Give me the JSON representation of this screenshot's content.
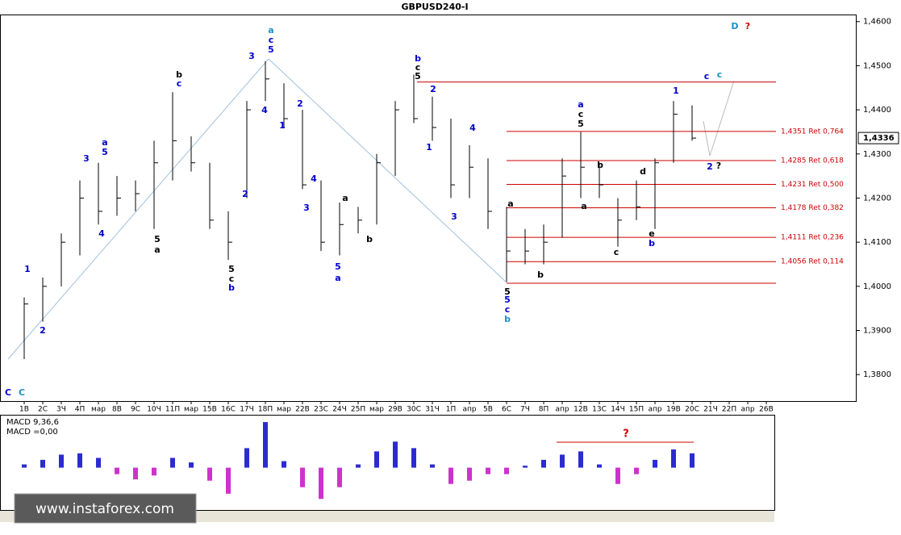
{
  "chart_data": {
    "type": "ohlc",
    "title": "GBPUSD240-I",
    "categories": [
      "1В",
      "2С",
      "3Ч",
      "4П",
      "мар",
      "8В",
      "9С",
      "10Ч",
      "11П",
      "мар",
      "15В",
      "16С",
      "17Ч",
      "18П",
      "мар",
      "22В",
      "23С",
      "24Ч",
      "25П",
      "мар",
      "29В",
      "30С",
      "31Ч",
      "1П",
      "апр",
      "5В",
      "6С",
      "7Ч",
      "8П",
      "апр",
      "12В",
      "13С",
      "14Ч",
      "15П",
      "апр",
      "19В",
      "20С",
      "21Ч",
      "22П",
      "апр",
      "26В"
    ],
    "high": [
      1.3975,
      1.402,
      1.412,
      1.424,
      1.428,
      1.425,
      1.424,
      1.433,
      1.444,
      1.434,
      1.428,
      1.417,
      1.442,
      1.451,
      1.446,
      1.44,
      1.424,
      1.419,
      1.418,
      1.43,
      1.442,
      1.448,
      1.443,
      1.438,
      1.432,
      1.429,
      1.418,
      1.413,
      1.414,
      1.429,
      1.435,
      1.428,
      1.42,
      1.424,
      1.429,
      1.442,
      1.441,
      null,
      null,
      null,
      null
    ],
    "low": [
      1.3835,
      1.392,
      1.4,
      1.407,
      1.414,
      1.416,
      1.417,
      1.413,
      1.424,
      1.426,
      1.413,
      1.406,
      1.42,
      1.442,
      1.436,
      1.422,
      1.408,
      1.407,
      1.412,
      1.414,
      1.425,
      1.437,
      1.433,
      1.42,
      1.42,
      1.413,
      1.401,
      1.405,
      1.405,
      1.411,
      1.42,
      1.42,
      1.409,
      1.415,
      1.413,
      1.428,
      1.433,
      null,
      null,
      null,
      null
    ],
    "close": [
      1.396,
      1.4,
      1.41,
      1.42,
      1.417,
      1.42,
      1.421,
      1.428,
      1.433,
      1.428,
      1.415,
      1.41,
      1.44,
      1.447,
      1.438,
      1.423,
      1.41,
      1.414,
      1.415,
      1.428,
      1.44,
      1.438,
      1.436,
      1.423,
      1.427,
      1.417,
      1.408,
      1.408,
      1.41,
      1.425,
      1.427,
      1.423,
      1.415,
      1.418,
      1.428,
      1.439,
      1.4336,
      null,
      null,
      null,
      null
    ],
    "color": "#000000",
    "ylim": [
      1.374,
      1.4616
    ],
    "yticks": [
      {
        "value": 1.38,
        "label": "1,3800"
      },
      {
        "value": 1.39,
        "label": "1,3900"
      },
      {
        "value": 1.4,
        "label": "1,4000"
      },
      {
        "value": 1.41,
        "label": "1,4100"
      },
      {
        "value": 1.42,
        "label": "1,4200"
      },
      {
        "value": 1.43,
        "label": "1,4300"
      },
      {
        "value": 1.44,
        "label": "1,4400"
      },
      {
        "value": 1.45,
        "label": "1,4500"
      },
      {
        "value": 1.46,
        "label": "1,4600"
      }
    ],
    "current_price": {
      "value": 1.4336,
      "label": "1,4336"
    },
    "fib_levels": [
      {
        "value": 1.4351,
        "label": "1,4351 Ret 0,764"
      },
      {
        "value": 1.4285,
        "label": "1,4285 Ret 0,618"
      },
      {
        "value": 1.4231,
        "label": "1,4231 Ret 0,500"
      },
      {
        "value": 1.4178,
        "label": "1,4178 Ret 0,382"
      },
      {
        "value": 1.4111,
        "label": "1,4111 Ret 0,236"
      },
      {
        "value": 1.4056,
        "label": "1,4056 Ret 0,114"
      }
    ],
    "fib_color": "#cc0000",
    "range_lines": [
      1.4463,
      1.4007
    ],
    "annotations": [
      {
        "text": "C",
        "color": "#0000cc"
      },
      {
        "text": "C",
        "color": "#1e8fc8"
      },
      {
        "text": "1",
        "color": "#0000cc"
      },
      {
        "text": "2",
        "color": "#0000cc"
      },
      {
        "text": "3",
        "color": "#0000cc"
      },
      {
        "text": "5",
        "color": "#0000cc"
      },
      {
        "text": "a",
        "color": "#0000cc"
      },
      {
        "text": "4",
        "color": "#0000cc"
      },
      {
        "text": "b",
        "color": "#000000"
      },
      {
        "text": "c",
        "color": "#0000cc"
      },
      {
        "text": "5",
        "color": "#000000"
      },
      {
        "text": "a",
        "color": "#000000"
      },
      {
        "text": "3",
        "color": "#0000cc"
      },
      {
        "text": "a",
        "color": "#1e8fc8"
      },
      {
        "text": "c",
        "color": "#0000cc"
      },
      {
        "text": "5",
        "color": "#0000cc"
      },
      {
        "text": "4",
        "color": "#0000cc"
      },
      {
        "text": "2",
        "color": "#0000cc"
      },
      {
        "text": "5",
        "color": "#000000"
      },
      {
        "text": "c",
        "color": "#000000"
      },
      {
        "text": "b",
        "color": "#0000cc"
      },
      {
        "text": "1",
        "color": "#0000cc"
      },
      {
        "text": "2",
        "color": "#0000cc"
      },
      {
        "text": "3",
        "color": "#0000cc"
      },
      {
        "text": "4",
        "color": "#0000cc"
      },
      {
        "text": "5",
        "color": "#0000cc"
      },
      {
        "text": "a",
        "color": "#0000cc"
      },
      {
        "text": "a",
        "color": "#000000"
      },
      {
        "text": "b",
        "color": "#000000"
      },
      {
        "text": "b",
        "color": "#0000cc"
      },
      {
        "text": "c",
        "color": "#000000"
      },
      {
        "text": "5",
        "color": "#000000"
      },
      {
        "text": "2",
        "color": "#0000cc"
      },
      {
        "text": "1",
        "color": "#0000cc"
      },
      {
        "text": "4",
        "color": "#0000cc"
      },
      {
        "text": "3",
        "color": "#0000cc"
      },
      {
        "text": "5",
        "color": "#000000"
      },
      {
        "text": "5",
        "color": "#0000cc"
      },
      {
        "text": "c",
        "color": "#0000cc"
      },
      {
        "text": "b",
        "color": "#1e8fc8"
      },
      {
        "text": "a",
        "color": "#000000"
      },
      {
        "text": "b",
        "color": "#000000"
      },
      {
        "text": "a",
        "color": "#0000cc"
      },
      {
        "text": "c",
        "color": "#000000"
      },
      {
        "text": "5",
        "color": "#000000"
      },
      {
        "text": "b",
        "color": "#000000"
      },
      {
        "text": "a",
        "color": "#000000"
      },
      {
        "text": "c",
        "color": "#000000"
      },
      {
        "text": "d",
        "color": "#000000"
      },
      {
        "text": "e",
        "color": "#000000"
      },
      {
        "text": "b",
        "color": "#0000cc"
      },
      {
        "text": "1",
        "color": "#0000cc"
      },
      {
        "text": "c",
        "color": "#0000cc"
      },
      {
        "text": "c",
        "color": "#1e8fc8"
      },
      {
        "text": "D",
        "color": "#1e8fc8"
      },
      {
        "text": "?",
        "color": "#cc0000"
      },
      {
        "text": "2",
        "color": "#0000cc"
      },
      {
        "text": "?",
        "color": "#000000"
      }
    ],
    "macd": {
      "label": "MACD 9,36,6",
      "value_label": "MACD =0,00",
      "values": [
        0.0005,
        0.0012,
        0.002,
        0.0022,
        0.0015,
        -0.001,
        -0.0018,
        -0.0012,
        0.0015,
        0.0008,
        -0.002,
        -0.004,
        0.003,
        0.007,
        0.001,
        -0.003,
        -0.0048,
        -0.003,
        0.0005,
        0.0025,
        0.004,
        0.003,
        0.0005,
        -0.0025,
        -0.002,
        -0.001,
        -0.001,
        0.0003,
        0.0012,
        0.002,
        0.0025,
        0.0005,
        -0.0025,
        -0.001,
        0.0012,
        0.0028,
        0.0022,
        null,
        null,
        null,
        null
      ],
      "ylim": [
        -0.0065,
        0.008
      ],
      "positive_color": "#2b2bd0",
      "negative_color": "#cc33cc",
      "annotation": {
        "text": "?",
        "color": "#cc0000"
      }
    },
    "watermark": "www.instaforex.com"
  }
}
